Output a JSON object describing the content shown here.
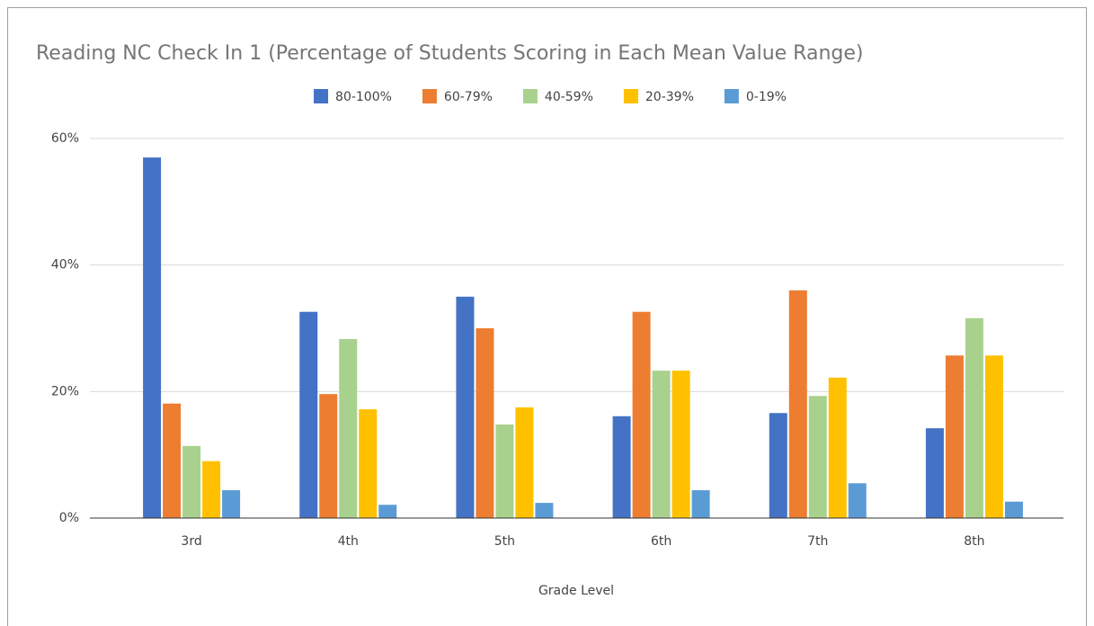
{
  "chart_data": {
    "type": "bar",
    "title": "Reading NC Check In 1 (Percentage of Students Scoring in Each Mean Value Range)",
    "xlabel": "Grade Level",
    "categories": [
      "3rd",
      "4th",
      "5th",
      "6th",
      "7th",
      "8th"
    ],
    "series": [
      {
        "name": "80-100%",
        "color": "#4472c4",
        "values": [
          57.0,
          32.6,
          35.0,
          16.1,
          16.6,
          14.2
        ]
      },
      {
        "name": "60-79%",
        "color": "#ed7d31",
        "values": [
          18.1,
          19.6,
          30.0,
          32.6,
          36.0,
          25.7
        ]
      },
      {
        "name": "40-59%",
        "color": "#a9d18e",
        "values": [
          11.4,
          28.3,
          14.8,
          23.3,
          19.3,
          31.6
        ]
      },
      {
        "name": "20-39%",
        "color": "#ffc000",
        "values": [
          9.0,
          17.2,
          17.5,
          23.3,
          22.2,
          25.7
        ]
      },
      {
        "name": "0-19%",
        "color": "#5b9bd5",
        "values": [
          4.4,
          2.1,
          2.4,
          4.4,
          5.5,
          2.6
        ]
      }
    ],
    "ylim": [
      0,
      60
    ],
    "yticks": [
      {
        "value": 0,
        "label": "0%"
      },
      {
        "value": 20,
        "label": "20%"
      },
      {
        "value": 40,
        "label": "40%"
      },
      {
        "value": 60,
        "label": "60%"
      }
    ],
    "grid": true,
    "legend": "top"
  }
}
